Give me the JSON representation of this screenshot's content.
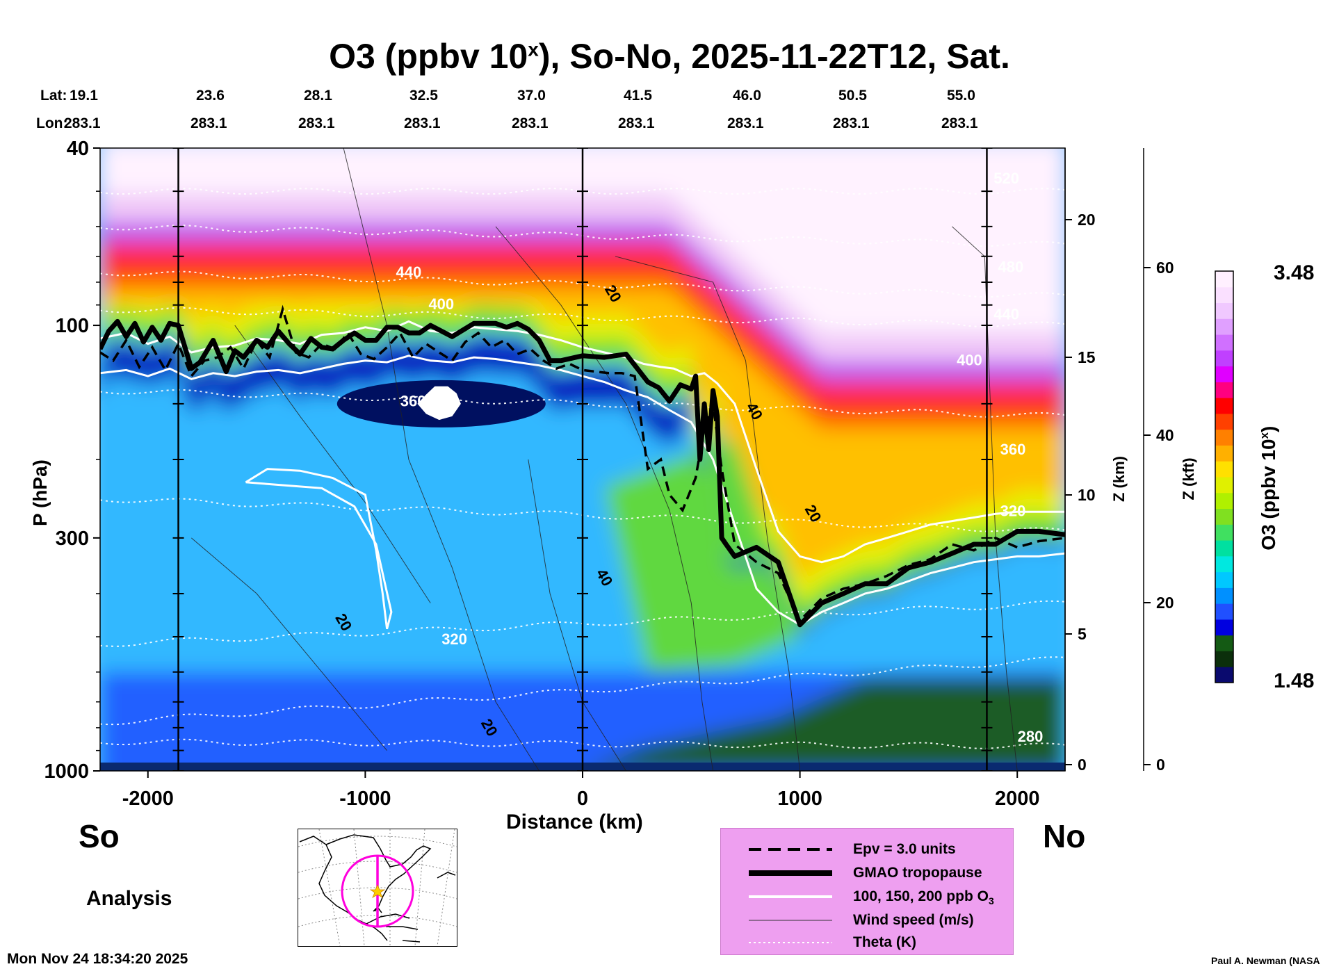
{
  "chart_data": {
    "type": "heatmap",
    "title": "O3 (ppbv 10",
    "title_sup": "x",
    "title_rest": "), So-No, 2025-11-22T12, Sat.",
    "header": {
      "lat_label": "Lat:",
      "lon_label": "Lon:",
      "lat_values": [
        "19.1",
        "23.6",
        "28.1",
        "32.5",
        "37.0",
        "41.5",
        "46.0",
        "50.5",
        "55.0"
      ],
      "lon_values": [
        "283.1",
        "283.1",
        "283.1",
        "283.1",
        "283.1",
        "283.1",
        "283.1",
        "283.1",
        "283.1"
      ]
    },
    "xlabel": "Distance (km)",
    "ylabel": "P (hPa)",
    "xlim": [
      -2220,
      2220
    ],
    "ylim": [
      1000,
      40
    ],
    "y_scale": "log",
    "x_ticks": [
      -2000,
      -1000,
      0,
      1000,
      2000
    ],
    "x_tick_labels": [
      "-2000",
      "-1000",
      "0",
      "1000",
      "2000"
    ],
    "y_ticks": [
      1000,
      300,
      100,
      40
    ],
    "y_tick_labels": [
      "1000",
      "300",
      "100",
      "40"
    ],
    "z_km_label": "Z (km)",
    "z_km_ticks": [
      "0",
      "5",
      "10",
      "15",
      "20"
    ],
    "z_kft_label": "Z (kft)",
    "z_kft_ticks": [
      "0",
      "20",
      "40",
      "60"
    ],
    "colorbar": {
      "label": "O3 (ppbv 10",
      "label_sup": "x",
      "label_end": ")",
      "max": "3.48",
      "min": "1.48",
      "colors": [
        "#0a0a6e",
        "#0b2f0b",
        "#145a14",
        "#0000e0",
        "#2050ff",
        "#0090ff",
        "#00c8ff",
        "#00e8e0",
        "#00e0a0",
        "#40e060",
        "#80e020",
        "#b0f000",
        "#e0f000",
        "#ffe000",
        "#ffb000",
        "#ff8000",
        "#ff4000",
        "#ff0000",
        "#ff0080",
        "#e000ff",
        "#c040ff",
        "#d070ff",
        "#e0a0ff",
        "#f0c8ff",
        "#fae0ff",
        "#fff0ff"
      ]
    },
    "theta_labels": [
      {
        "text": "440",
        "x": -800,
        "p": 78
      },
      {
        "text": "400",
        "x": -650,
        "p": 92
      },
      {
        "text": "360",
        "x": -780,
        "p": 152
      },
      {
        "text": "320",
        "x": -590,
        "p": 520
      },
      {
        "text": "520",
        "x": 1950,
        "p": 48
      },
      {
        "text": "480",
        "x": 1970,
        "p": 76
      },
      {
        "text": "440",
        "x": 1950,
        "p": 97
      },
      {
        "text": "400",
        "x": 1780,
        "p": 123
      },
      {
        "text": "360",
        "x": 1980,
        "p": 195
      },
      {
        "text": "320",
        "x": 1980,
        "p": 268
      },
      {
        "text": "280",
        "x": 2060,
        "p": 860
      }
    ],
    "wind_labels": [
      {
        "text": "20",
        "x": -1120,
        "p": 470
      },
      {
        "text": "20",
        "x": -450,
        "p": 810
      },
      {
        "text": "20",
        "x": 120,
        "p": 86
      },
      {
        "text": "40",
        "x": 80,
        "p": 373
      },
      {
        "text": "40",
        "x": 770,
        "p": 158
      },
      {
        "text": "20",
        "x": 1040,
        "p": 268
      }
    ],
    "tropopause": {
      "x": [
        -2220,
        -2180,
        -2140,
        -2100,
        -2060,
        -2020,
        -1980,
        -1940,
        -1900,
        -1860,
        -1800,
        -1760,
        -1700,
        -1640,
        -1600,
        -1560,
        -1500,
        -1450,
        -1400,
        -1350,
        -1300,
        -1250,
        -1200,
        -1150,
        -1100,
        -1050,
        -1000,
        -950,
        -900,
        -850,
        -800,
        -750,
        -700,
        -600,
        -500,
        -450,
        -400,
        -350,
        -300,
        -250,
        -200,
        -150,
        -100,
        0,
        100,
        200,
        300,
        350,
        400,
        450,
        500,
        520,
        540,
        560,
        580,
        600,
        620,
        640,
        660,
        700,
        800,
        900,
        1000,
        1100,
        1200,
        1300,
        1400,
        1500,
        1600,
        1700,
        1800,
        1900,
        2000,
        2100,
        2220
      ],
      "p": [
        113,
        103,
        98,
        106,
        99,
        109,
        101,
        108,
        99,
        100,
        125,
        121,
        108,
        127,
        114,
        118,
        108,
        112,
        103,
        110,
        116,
        107,
        112,
        113,
        108,
        104,
        108,
        108,
        101,
        101,
        104,
        104,
        100,
        106,
        99,
        99,
        99,
        101,
        99,
        102,
        108,
        120,
        120,
        117,
        118,
        116,
        134,
        138,
        148,
        136,
        139,
        130,
        200,
        150,
        190,
        140,
        160,
        300,
        310,
        330,
        315,
        340,
        470,
        420,
        400,
        380,
        380,
        350,
        340,
        325,
        310,
        310,
        290,
        290,
        295
      ]
    },
    "epv_line": {
      "x": [
        -2220,
        -2160,
        -2100,
        -2040,
        -1980,
        -1920,
        -1860,
        -1800,
        -1740,
        -1680,
        -1620,
        -1560,
        -1500,
        -1440,
        -1380,
        -1320,
        -1260,
        -1200,
        -1140,
        -1080,
        -1020,
        -960,
        -900,
        -840,
        -780,
        -720,
        -660,
        -600,
        -540,
        -480,
        -420,
        -360,
        -300,
        -240,
        -180,
        -120,
        -60,
        0,
        60,
        120,
        180,
        240,
        300,
        360,
        400,
        460,
        520,
        560,
        600,
        640,
        700,
        800,
        900,
        1000,
        1100,
        1200,
        1300,
        1400,
        1500,
        1600,
        1700,
        1800,
        1900,
        2000,
        2100,
        2220
      ],
      "p": [
        115,
        120,
        108,
        124,
        112,
        126,
        110,
        130,
        120,
        118,
        112,
        125,
        108,
        118,
        92,
        115,
        118,
        110,
        113,
        104,
        116,
        119,
        112,
        104,
        118,
        110,
        115,
        120,
        109,
        104,
        112,
        108,
        116,
        113,
        120,
        125,
        122,
        126,
        127,
        128,
        128,
        130,
        210,
        200,
        240,
        260,
        220,
        170,
        150,
        210,
        310,
        340,
        360,
        460,
        410,
        390,
        380,
        365,
        345,
        335,
        310,
        320,
        300,
        315,
        305,
        300
      ]
    },
    "contour_o3_200": {
      "x": [
        -2220,
        -2100,
        -2000,
        -1900,
        -1800,
        -1700,
        -1600,
        -1500,
        -1400,
        -1300,
        -1200,
        -1100,
        -1000,
        -900,
        -800,
        -700,
        -600,
        -500,
        -400,
        -300,
        -200,
        -100,
        0,
        100,
        200,
        280,
        360,
        420,
        500,
        560,
        620,
        700,
        800,
        900,
        1000,
        1100,
        1200,
        1300,
        1400,
        1500,
        1600,
        1700,
        1800,
        1900,
        2000,
        2100,
        2220
      ],
      "p": [
        107,
        104,
        110,
        106,
        115,
        112,
        111,
        107,
        108,
        110,
        105,
        104,
        101,
        103,
        98,
        103,
        104,
        101,
        102,
        103,
        105,
        108,
        112,
        115,
        118,
        122,
        124,
        125,
        130,
        128,
        135,
        150,
        210,
        290,
        330,
        340,
        330,
        310,
        300,
        290,
        280,
        275,
        270,
        265,
        262,
        262,
        262
      ]
    },
    "contour_o3_100": {
      "x": [
        -2220,
        -2100,
        -2000,
        -1900,
        -1800,
        -1700,
        -1600,
        -1500,
        -1400,
        -1300,
        -1200,
        -1100,
        -1000,
        -900,
        -800,
        -700,
        -600,
        -500,
        -400,
        -300,
        -200,
        -100,
        0,
        100,
        200,
        300,
        400,
        500,
        600,
        700,
        800,
        900,
        1000,
        1100,
        1200,
        1300,
        1400,
        1500,
        1600,
        1700,
        1800,
        1900,
        2000,
        2100,
        2220
      ],
      "p": [
        128,
        126,
        130,
        125,
        132,
        128,
        130,
        127,
        126,
        128,
        125,
        122,
        120,
        121,
        117,
        120,
        121,
        118,
        119,
        121,
        123,
        126,
        130,
        134,
        140,
        145,
        155,
        165,
        200,
        280,
        390,
        440,
        470,
        440,
        420,
        400,
        390,
        375,
        360,
        350,
        340,
        335,
        330,
        330,
        325
      ]
    },
    "plume_contour": {
      "x": [
        -1550,
        -1450,
        -1300,
        -1150,
        -1000,
        -950,
        -920,
        -900,
        -880,
        -950,
        -1050,
        -1200,
        -1400,
        -1550
      ],
      "p": [
        225,
        210,
        212,
        220,
        240,
        320,
        400,
        480,
        440,
        310,
        255,
        232,
        228,
        225
      ]
    },
    "white_blob": {
      "x": [
        -720,
        -680,
        -620,
        -580,
        -560,
        -600,
        -660,
        -720,
        -760,
        -720
      ],
      "p": [
        143,
        137,
        137,
        142,
        150,
        160,
        163,
        158,
        150,
        143
      ]
    },
    "vertical_lines_x": [
      -1860,
      0,
      1860
    ]
  },
  "labels": {
    "so": "So",
    "no": "No",
    "analysis": "Analysis",
    "timestamp": "Mon Nov 24 18:34:20 2025",
    "credit": "Paul A. Newman (NASA"
  },
  "legend": {
    "items": [
      {
        "label": "Epv = 3.0 units",
        "style": "dashed"
      },
      {
        "label": "GMAO tropopause",
        "style": "thick"
      },
      {
        "label": "100, 150, 200 ppb O",
        "sub": "3",
        "style": "white"
      },
      {
        "label": "Wind speed (m/s)",
        "style": "thin"
      },
      {
        "label": "Theta (K)",
        "style": "dotted"
      }
    ]
  },
  "colors": {
    "legend_bg": "#ee9ff0",
    "map_circle": "#ff00dd",
    "map_star": "#ffcc00"
  }
}
